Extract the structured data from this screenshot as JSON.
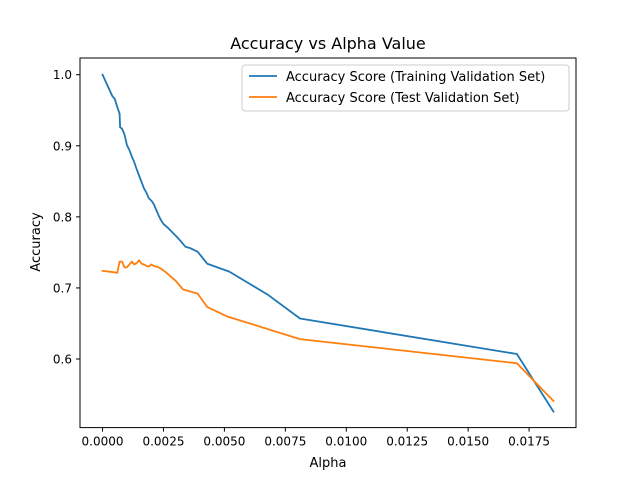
{
  "chart_data": {
    "type": "line",
    "title": "Accuracy vs Alpha Value",
    "xlabel": "Alpha",
    "ylabel": "Accuracy",
    "xlim": [
      -0.000925,
      0.019425
    ],
    "ylim": [
      0.5035,
      1.0235
    ],
    "x_ticks": [
      0.0,
      0.0025,
      0.005,
      0.0075,
      0.01,
      0.0125,
      0.015,
      0.0175
    ],
    "x_tick_labels": [
      "0.0000",
      "0.0025",
      "0.0050",
      "0.0075",
      "0.0100",
      "0.0125",
      "0.0150",
      "0.0175"
    ],
    "y_ticks": [
      0.6,
      0.7,
      0.8,
      0.9,
      1.0
    ],
    "y_tick_labels": [
      "0.6",
      "0.7",
      "0.8",
      "0.9",
      "1.0"
    ],
    "grid": false,
    "legend_position": "upper-right",
    "series": [
      {
        "name": "Accuracy Score (Training Validation Set)",
        "color": "#1f77b4",
        "x": [
          0.0,
          0.0002,
          0.0004,
          0.0005,
          0.0006,
          0.0007,
          0.00072,
          0.0008,
          0.0009,
          0.001,
          0.0011,
          0.0012,
          0.0013,
          0.0014,
          0.0015,
          0.0016,
          0.0017,
          0.0018,
          0.0019,
          0.002,
          0.0021,
          0.0022,
          0.0023,
          0.0024,
          0.0025,
          0.0027,
          0.0029,
          0.0031,
          0.0034,
          0.0036,
          0.0039,
          0.0043,
          0.0052,
          0.0068,
          0.0081,
          0.017,
          0.0185
        ],
        "values": [
          1.0,
          0.985,
          0.97,
          0.966,
          0.955,
          0.945,
          0.926,
          0.924,
          0.916,
          0.901,
          0.894,
          0.885,
          0.877,
          0.867,
          0.858,
          0.849,
          0.84,
          0.834,
          0.826,
          0.823,
          0.818,
          0.81,
          0.802,
          0.795,
          0.79,
          0.784,
          0.777,
          0.77,
          0.758,
          0.756,
          0.751,
          0.734,
          0.723,
          0.69,
          0.657,
          0.607,
          0.526
        ]
      },
      {
        "name": "Accuracy Score (Test Validation Set)",
        "color": "#ff7f0e",
        "x": [
          0.0,
          0.0005,
          0.0006,
          0.0007,
          0.0008,
          0.0009,
          0.001,
          0.0011,
          0.0012,
          0.0013,
          0.0014,
          0.0015,
          0.0016,
          0.0017,
          0.0018,
          0.0019,
          0.002,
          0.0021,
          0.0023,
          0.0024,
          0.0026,
          0.0028,
          0.003,
          0.0033,
          0.0039,
          0.0043,
          0.0051,
          0.0081,
          0.017,
          0.0185
        ],
        "values": [
          0.724,
          0.722,
          0.721,
          0.737,
          0.737,
          0.729,
          0.729,
          0.733,
          0.737,
          0.733,
          0.735,
          0.739,
          0.734,
          0.733,
          0.731,
          0.73,
          0.733,
          0.731,
          0.729,
          0.727,
          0.722,
          0.716,
          0.71,
          0.698,
          0.692,
          0.673,
          0.66,
          0.628,
          0.594,
          0.541
        ]
      }
    ]
  }
}
